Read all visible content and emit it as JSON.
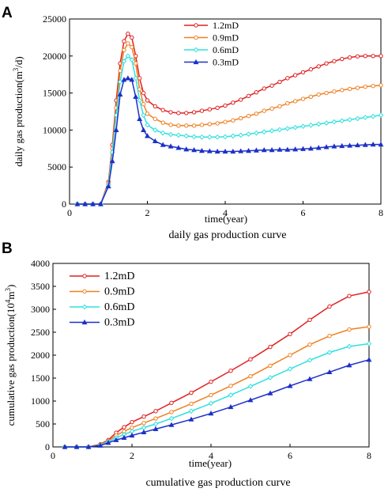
{
  "chart_data": [
    {
      "panel_label": "A",
      "type": "line",
      "title": "",
      "caption": "daily gas production curve",
      "xlabel": "time(year)",
      "ylabel_pre": "daily gas production(m",
      "ylabel_sup": "3",
      "ylabel_post": "/d)",
      "xlim": [
        0,
        8
      ],
      "ylim": [
        0,
        25000
      ],
      "xticks": [
        0,
        2,
        4,
        6,
        8
      ],
      "yticks": [
        0,
        5000,
        10000,
        15000,
        20000,
        25000
      ],
      "legend_position": "top-center",
      "grid": false,
      "x": [
        0.2,
        0.4,
        0.6,
        0.8,
        1.0,
        1.1,
        1.2,
        1.3,
        1.4,
        1.5,
        1.6,
        1.7,
        1.8,
        1.9,
        2.0,
        2.2,
        2.4,
        2.6,
        2.8,
        3.0,
        3.2,
        3.4,
        3.6,
        3.8,
        4.0,
        4.2,
        4.4,
        4.6,
        4.8,
        5.0,
        5.2,
        5.4,
        5.6,
        5.8,
        6.0,
        6.2,
        6.4,
        6.6,
        6.8,
        7.0,
        7.2,
        7.4,
        7.6,
        7.8,
        8.0
      ],
      "series": [
        {
          "name": "1.2mD",
          "color": "#e02020",
          "marker": "circle",
          "values": [
            0,
            0,
            0,
            0,
            3000,
            8000,
            14000,
            19000,
            22000,
            23000,
            22500,
            20000,
            17000,
            15000,
            14000,
            13200,
            12700,
            12400,
            12300,
            12300,
            12400,
            12600,
            12800,
            13000,
            13300,
            13700,
            14100,
            14600,
            15100,
            15600,
            16000,
            16500,
            17000,
            17400,
            17800,
            18200,
            18600,
            19000,
            19300,
            19600,
            19800,
            19950,
            20000,
            20000,
            20000
          ]
        },
        {
          "name": "0.9mD",
          "color": "#f08020",
          "marker": "circle",
          "values": [
            0,
            0,
            0,
            0,
            2800,
            7500,
            13000,
            18000,
            20800,
            21700,
            21200,
            19000,
            15500,
            13500,
            12200,
            11500,
            11000,
            10700,
            10600,
            10600,
            10600,
            10700,
            10800,
            10900,
            11100,
            11300,
            11600,
            11900,
            12200,
            12600,
            12900,
            13200,
            13600,
            13900,
            14200,
            14500,
            14800,
            15000,
            15200,
            15400,
            15550,
            15700,
            15850,
            15950,
            16050
          ]
        },
        {
          "name": "0.6mD",
          "color": "#30e0e0",
          "marker": "diamond",
          "values": [
            0,
            0,
            0,
            0,
            2600,
            7000,
            12000,
            16500,
            19300,
            20000,
            19500,
            17000,
            14000,
            12000,
            10700,
            10000,
            9600,
            9400,
            9300,
            9200,
            9100,
            9050,
            9050,
            9050,
            9100,
            9200,
            9300,
            9450,
            9600,
            9750,
            9900,
            10050,
            10200,
            10350,
            10500,
            10650,
            10800,
            10950,
            11100,
            11250,
            11400,
            11550,
            11700,
            11850,
            12000
          ]
        },
        {
          "name": "0.3mD",
          "color": "#1c30c8",
          "marker": "triangle",
          "values": [
            0,
            0,
            0,
            0,
            2400,
            5800,
            10000,
            14800,
            16800,
            17000,
            16800,
            14500,
            11500,
            10000,
            9200,
            8500,
            8000,
            7800,
            7600,
            7400,
            7300,
            7200,
            7150,
            7100,
            7100,
            7100,
            7150,
            7200,
            7250,
            7300,
            7300,
            7350,
            7350,
            7400,
            7450,
            7500,
            7600,
            7700,
            7800,
            7850,
            7900,
            7950,
            8000,
            8050,
            8050
          ]
        }
      ]
    },
    {
      "panel_label": "B",
      "type": "line",
      "title": "",
      "caption": "cumulative gas production curve",
      "xlabel": "time(year)",
      "ylabel_pre": "cumulative gas production(10",
      "ylabel_sup": "4",
      "ylabel_mid": "m",
      "ylabel_sup2": "3",
      "ylabel_post": ")",
      "xlim": [
        0,
        8
      ],
      "ylim": [
        0,
        4000
      ],
      "xticks": [
        0,
        2,
        4,
        6,
        8
      ],
      "yticks": [
        0,
        500,
        1000,
        1500,
        2000,
        2500,
        3000,
        3500,
        4000
      ],
      "legend_position": "top-left",
      "grid": false,
      "x": [
        0.3,
        0.6,
        0.9,
        1.2,
        1.4,
        1.6,
        1.8,
        2.0,
        2.3,
        2.6,
        3.0,
        3.5,
        4.0,
        4.5,
        5.0,
        5.5,
        6.0,
        6.5,
        7.0,
        7.5,
        8.0
      ],
      "series": [
        {
          "name": "1.2mD",
          "color": "#e02020",
          "marker": "circle",
          "values": [
            0,
            0,
            0,
            60,
            150,
            310,
            430,
            540,
            660,
            780,
            960,
            1180,
            1420,
            1660,
            1910,
            2180,
            2460,
            2770,
            3060,
            3290,
            3380
          ]
        },
        {
          "name": "0.9mD",
          "color": "#f08020",
          "marker": "circle",
          "values": [
            0,
            0,
            0,
            50,
            130,
            250,
            340,
            420,
            520,
            620,
            760,
            940,
            1130,
            1330,
            1540,
            1770,
            2000,
            2230,
            2420,
            2560,
            2620
          ]
        },
        {
          "name": "0.6mD",
          "color": "#30e0e0",
          "marker": "diamond",
          "values": [
            0,
            0,
            0,
            40,
            110,
            200,
            270,
            340,
            420,
            500,
            620,
            780,
            950,
            1130,
            1320,
            1510,
            1700,
            1890,
            2060,
            2190,
            2250
          ]
        },
        {
          "name": "0.3mD",
          "color": "#1c30c8",
          "marker": "triangle",
          "values": [
            0,
            0,
            0,
            30,
            90,
            150,
            200,
            250,
            320,
            390,
            480,
            600,
            730,
            870,
            1020,
            1170,
            1330,
            1480,
            1630,
            1780,
            1900
          ]
        }
      ]
    }
  ]
}
